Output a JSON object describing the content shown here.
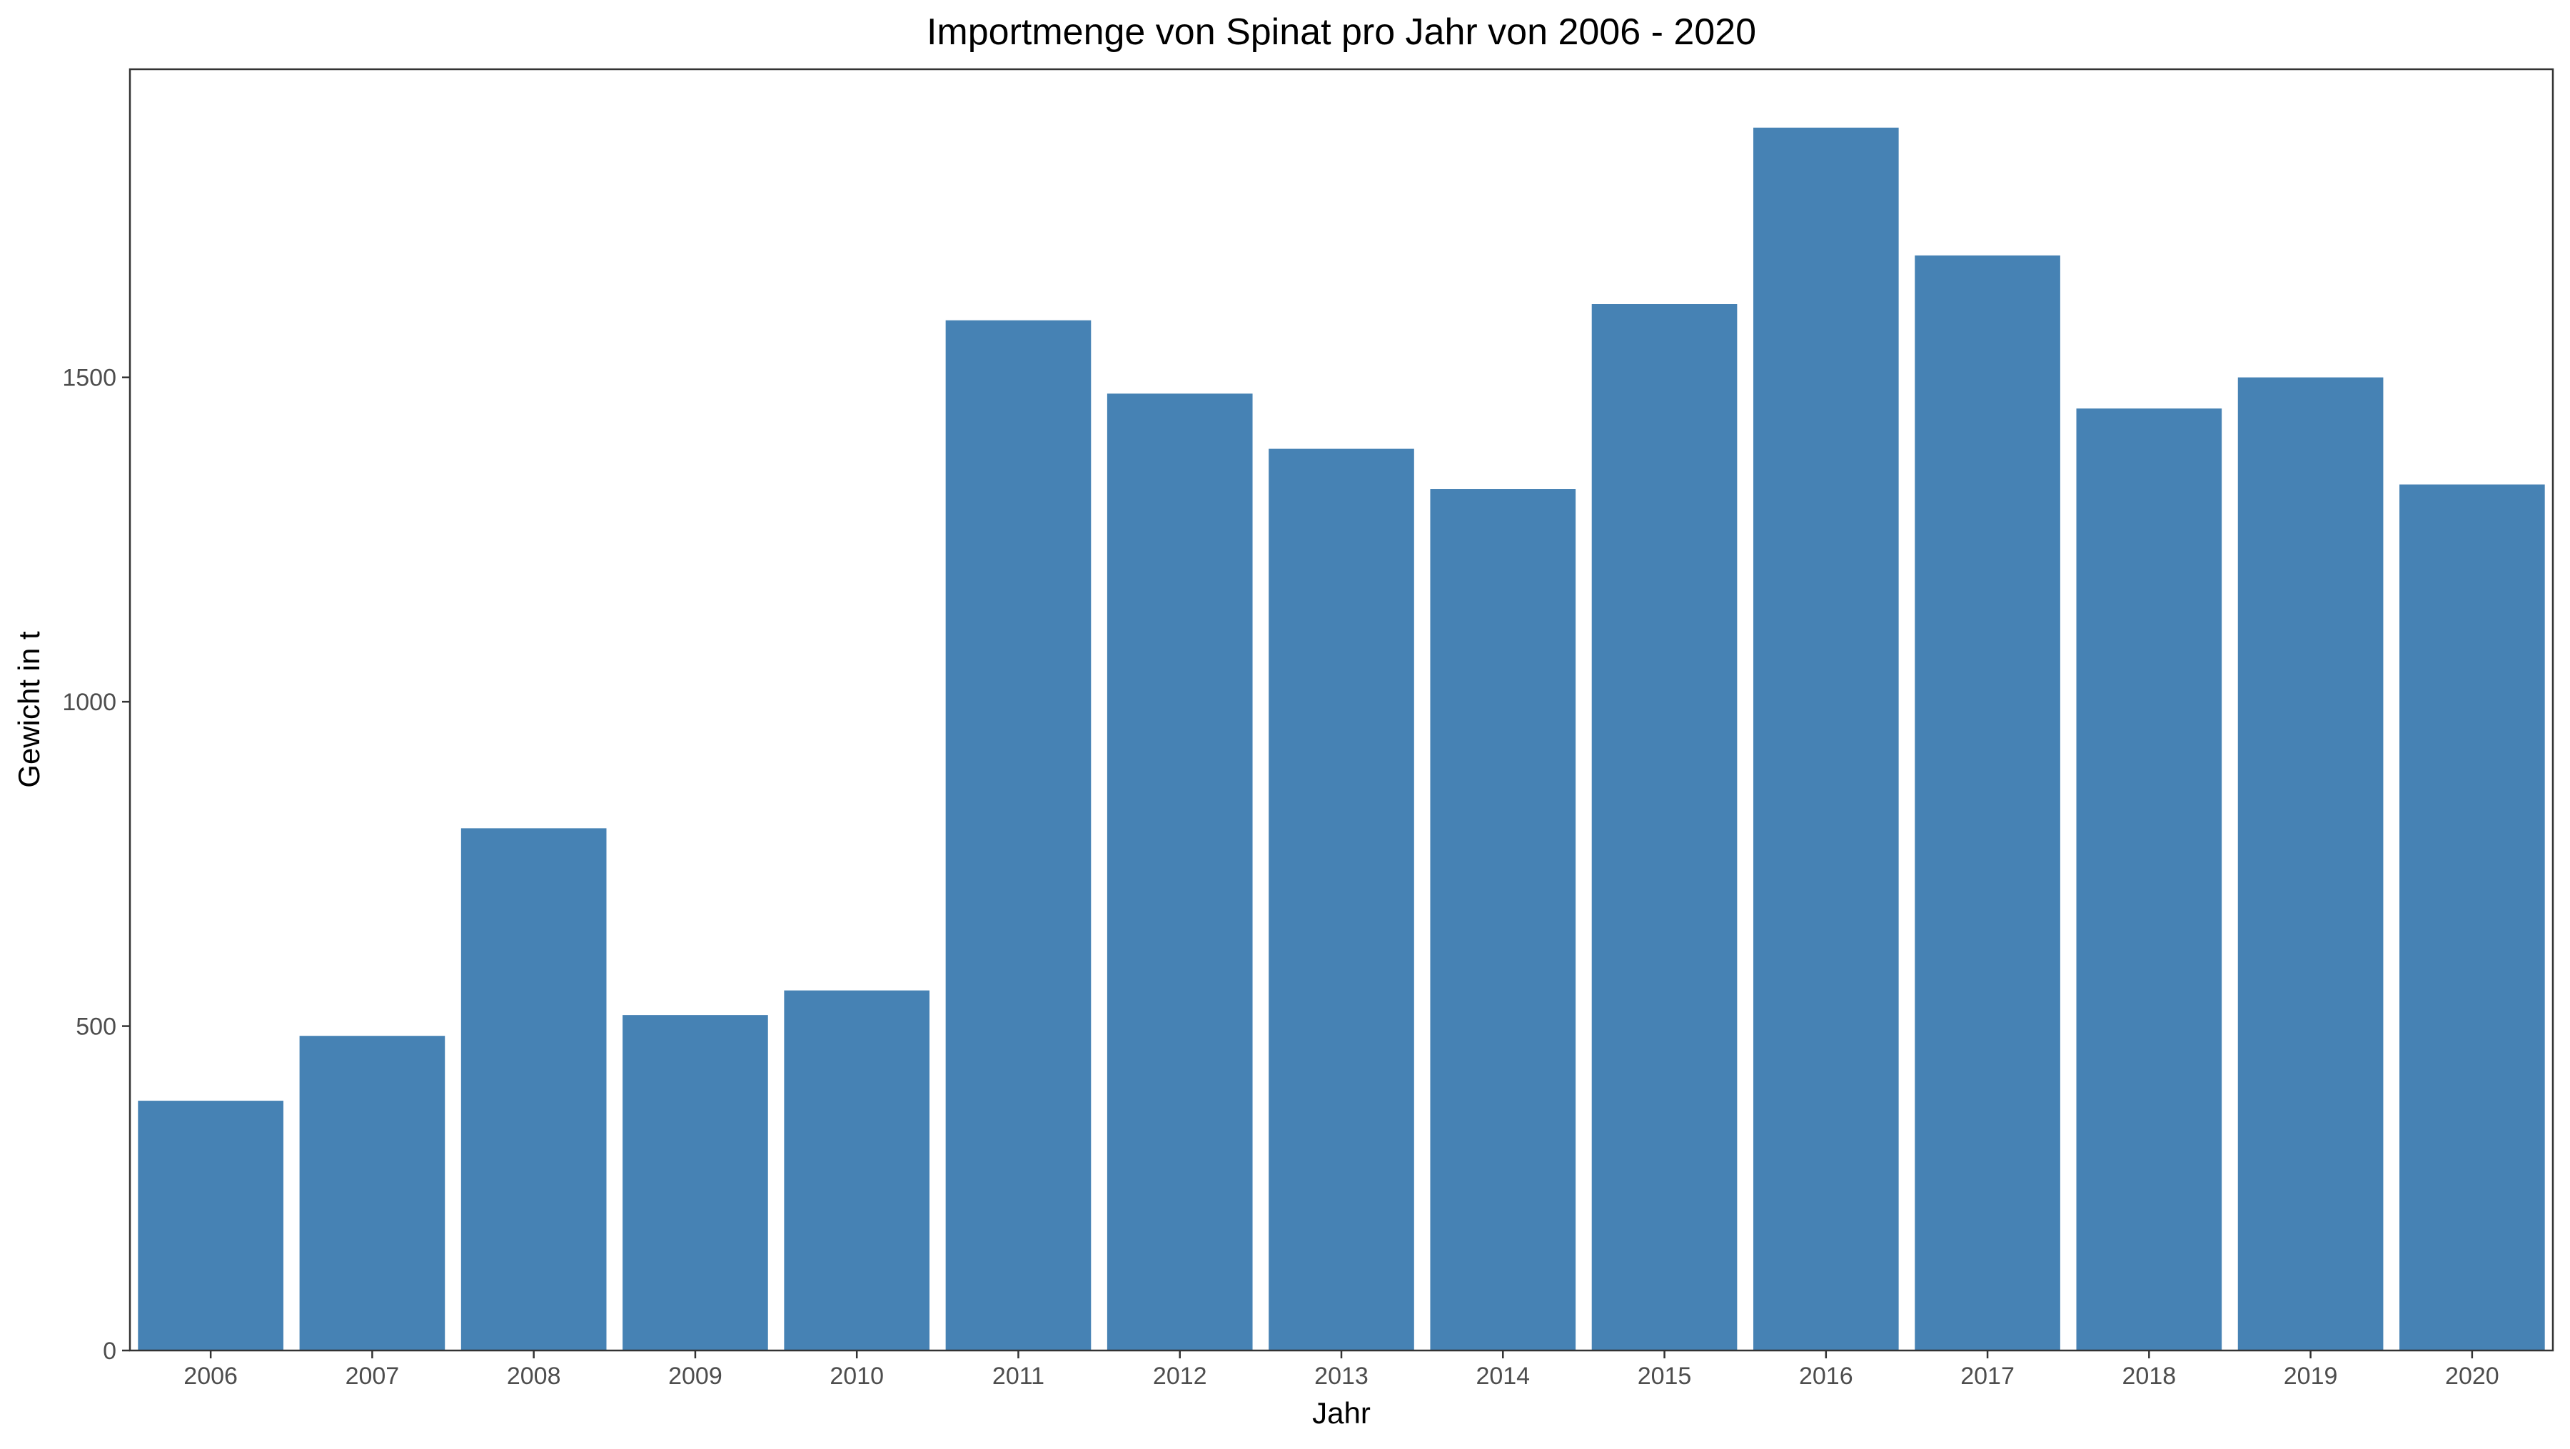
{
  "chart_data": {
    "type": "bar",
    "title": "Importmenge von Spinat pro Jahr von 2006 - 2020",
    "xlabel": "Jahr",
    "ylabel": "Gewicht in t",
    "categories": [
      "2006",
      "2007",
      "2008",
      "2009",
      "2010",
      "2011",
      "2012",
      "2013",
      "2014",
      "2015",
      "2016",
      "2017",
      "2018",
      "2019",
      "2020"
    ],
    "values": [
      385,
      485,
      805,
      517,
      555,
      1588,
      1475,
      1390,
      1328,
      1613,
      1885,
      1688,
      1452,
      1500,
      1335
    ],
    "yticks": [
      0,
      500,
      1000,
      1500
    ],
    "ylim": [
      0,
      1975
    ],
    "bar_color": "#4682B4",
    "grid": false,
    "legend": "none"
  }
}
